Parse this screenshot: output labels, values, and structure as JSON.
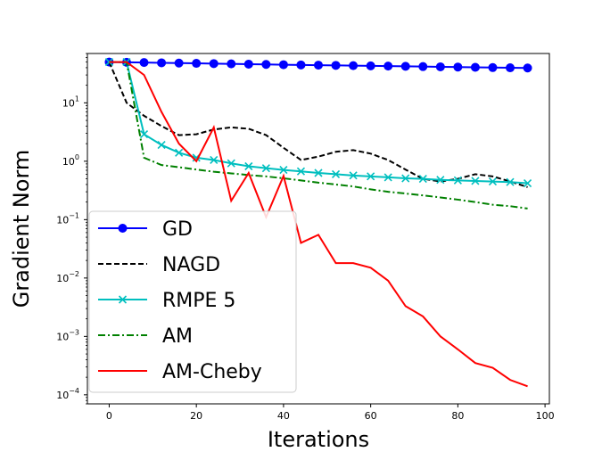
{
  "chart_data": {
    "type": "line",
    "xlabel": "Iterations",
    "ylabel": "Gradient Norm",
    "yscale": "log",
    "xlim": [
      -5,
      101
    ],
    "ylim": [
      7e-05,
      70
    ],
    "x_ticks": [
      0,
      20,
      40,
      60,
      80,
      100
    ],
    "y_ticks": [
      {
        "value": 10,
        "base": "10",
        "exp": "1"
      },
      {
        "value": 1,
        "base": "10",
        "exp": "0"
      },
      {
        "value": 0.1,
        "base": "10",
        "exp": "−1"
      },
      {
        "value": 0.01,
        "base": "10",
        "exp": "−2"
      },
      {
        "value": 0.001,
        "base": "10",
        "exp": "−3"
      },
      {
        "value": 0.0001,
        "base": "10",
        "exp": "−4"
      }
    ],
    "grid": false,
    "legend_position": "lower-left",
    "series": [
      {
        "name": "GD",
        "color": "#0000ff",
        "style": "solid",
        "marker": "circle",
        "x": [
          0,
          4,
          8,
          12,
          16,
          20,
          24,
          28,
          32,
          36,
          40,
          44,
          48,
          52,
          56,
          60,
          64,
          68,
          72,
          76,
          80,
          84,
          88,
          92,
          96
        ],
        "y": [
          50,
          49.5,
          49,
          48.5,
          48,
          47.5,
          47,
          46.5,
          46,
          45.5,
          45,
          44.6,
          44.2,
          43.8,
          43.4,
          43,
          42.6,
          42.2,
          41.8,
          41.4,
          41,
          40.6,
          40.2,
          39.8,
          39.5
        ]
      },
      {
        "name": "NAGD",
        "color": "#000000",
        "style": "dashed",
        "marker": "none",
        "x": [
          0,
          4,
          8,
          12,
          16,
          20,
          24,
          28,
          32,
          36,
          40,
          44,
          48,
          52,
          56,
          60,
          64,
          68,
          72,
          76,
          80,
          84,
          88,
          92,
          96
        ],
        "y": [
          50,
          10,
          6,
          4,
          2.8,
          2.9,
          3.5,
          3.8,
          3.6,
          2.8,
          1.7,
          1.05,
          1.2,
          1.45,
          1.55,
          1.35,
          1.05,
          0.72,
          0.5,
          0.45,
          0.5,
          0.6,
          0.55,
          0.45,
          0.36
        ]
      },
      {
        "name": "RMPE 5",
        "color": "#00bfbf",
        "style": "solid",
        "marker": "x",
        "x": [
          0,
          4,
          8,
          12,
          16,
          20,
          24,
          28,
          32,
          36,
          40,
          44,
          48,
          52,
          56,
          60,
          64,
          68,
          72,
          76,
          80,
          84,
          88,
          92,
          96
        ],
        "y": [
          50,
          50,
          2.9,
          1.9,
          1.4,
          1.15,
          1.05,
          0.92,
          0.82,
          0.76,
          0.71,
          0.67,
          0.63,
          0.6,
          0.57,
          0.55,
          0.53,
          0.51,
          0.5,
          0.48,
          0.47,
          0.46,
          0.45,
          0.44,
          0.42
        ]
      },
      {
        "name": "AM",
        "color": "#008000",
        "style": "dashdot",
        "marker": "none",
        "x": [
          0,
          4,
          8,
          12,
          16,
          20,
          24,
          28,
          32,
          36,
          40,
          44,
          48,
          52,
          56,
          60,
          64,
          68,
          72,
          76,
          80,
          84,
          88,
          92,
          96
        ],
        "y": [
          50,
          50,
          1.15,
          0.86,
          0.79,
          0.72,
          0.66,
          0.62,
          0.58,
          0.55,
          0.51,
          0.47,
          0.43,
          0.4,
          0.37,
          0.33,
          0.3,
          0.28,
          0.26,
          0.24,
          0.22,
          0.2,
          0.18,
          0.17,
          0.155
        ]
      },
      {
        "name": "AM-Cheby",
        "color": "#ff0000",
        "style": "solid",
        "marker": "none",
        "x": [
          0,
          4,
          8,
          12,
          16,
          20,
          24,
          28,
          32,
          36,
          40,
          44,
          48,
          52,
          56,
          60,
          64,
          68,
          72,
          76,
          80,
          84,
          88,
          92,
          96
        ],
        "y": [
          50,
          50,
          30,
          7,
          2,
          1,
          3.8,
          0.21,
          0.63,
          0.11,
          0.56,
          0.04,
          0.055,
          0.018,
          0.018,
          0.015,
          0.009,
          0.0033,
          0.0022,
          0.001,
          0.0006,
          0.00035,
          0.00029,
          0.00018,
          0.00014
        ]
      }
    ]
  }
}
